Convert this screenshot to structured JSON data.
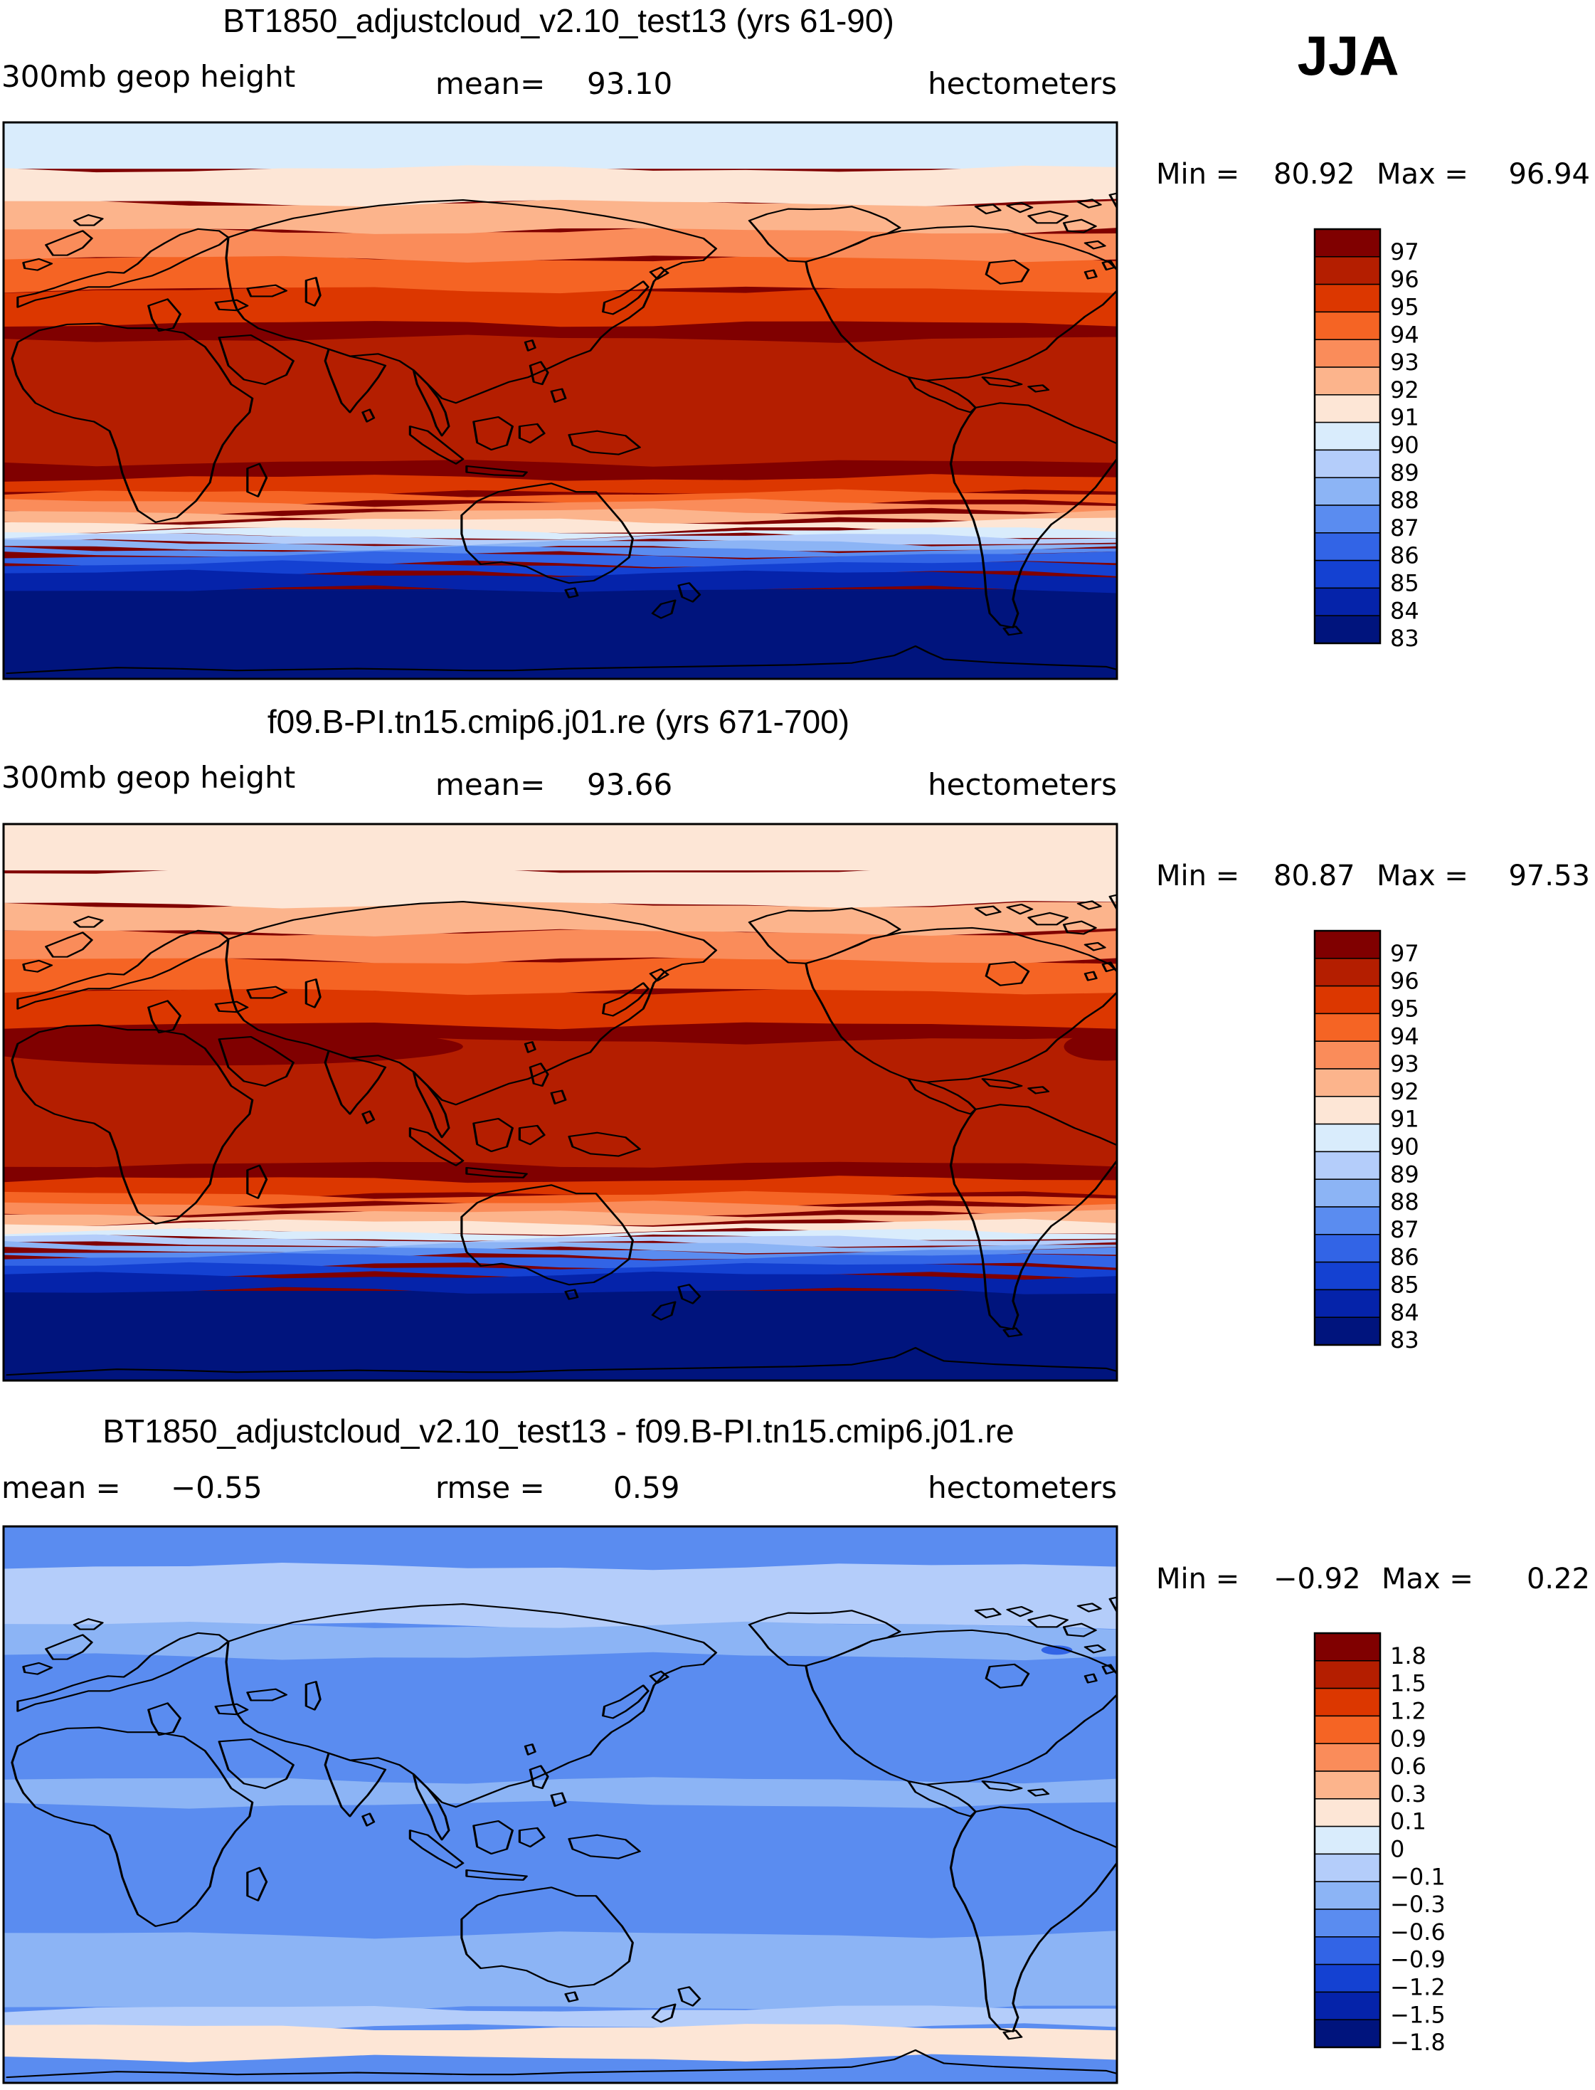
{
  "season": "JJA",
  "units_label": "hectometers",
  "panels": [
    {
      "id": "control",
      "title": "BT1850_adjustcloud_v2.10_test13 (yrs 61-90)",
      "variable": "300mb geop height",
      "mean_label": "mean=",
      "mean_value": "93.10",
      "min_label": "Min =",
      "min_value": "80.92",
      "max_label": "Max =",
      "max_value": "96.94",
      "pattern": "abs",
      "pole_color": "#d9ecfc",
      "warm_core": 0,
      "colorbar_labels": [
        "97",
        "96",
        "95",
        "94",
        "93",
        "92",
        "91",
        "90",
        "89",
        "88",
        "87",
        "86",
        "85",
        "84",
        "83"
      ]
    },
    {
      "id": "reference",
      "title": "f09.B-PI.tn15.cmip6.j01.re (yrs 671-700)",
      "variable": "300mb geop height",
      "mean_label": "mean=",
      "mean_value": "93.66",
      "min_label": "Min =",
      "min_value": "80.87",
      "max_label": "Max =",
      "max_value": "97.53",
      "pattern": "abs",
      "pole_color": "#fde6d6",
      "warm_core": 1,
      "colorbar_labels": [
        "97",
        "96",
        "95",
        "94",
        "93",
        "92",
        "91",
        "90",
        "89",
        "88",
        "87",
        "86",
        "85",
        "84",
        "83"
      ]
    },
    {
      "id": "difference",
      "title": "BT1850_adjustcloud_v2.10_test13 - f09.B-PI.tn15.cmip6.j01.re",
      "mean_label": "mean =",
      "mean_value": "−0.55",
      "rmse_label": "rmse =",
      "rmse_value": "0.59",
      "min_label": "Min =",
      "min_value": "−0.92",
      "max_label": "Max =",
      "max_value": "0.22",
      "pattern": "diff",
      "colorbar_labels": [
        "1.8",
        "1.5",
        "1.2",
        "0.9",
        "0.6",
        "0.3",
        "0.1",
        "0",
        "−0.1",
        "−0.3",
        "−0.6",
        "−0.9",
        "−1.2",
        "−1.5",
        "−1.8"
      ]
    }
  ],
  "colorbar_colors": [
    "#800000",
    "#b41e00",
    "#dc3700",
    "#f56424",
    "#fa8c5a",
    "#fcb48c",
    "#fde6d6",
    "#d9ecfc",
    "#b4cdfa",
    "#8cb4f5",
    "#5a8cf0",
    "#3264e6",
    "#1441d2",
    "#0523aa",
    "#00147d"
  ],
  "bands_abs": [
    {
      "color": "#b41e00",
      "min": -20,
      "max": 20
    },
    {
      "color": "#dc3700",
      "min": 25,
      "max": 36
    },
    {
      "color": "#f56424",
      "min": 36,
      "max": 46
    },
    {
      "color": "#fa8c5a",
      "min": 46,
      "max": 55
    },
    {
      "color": "#fcb48c",
      "min": 55,
      "max": 64
    },
    {
      "color": "#fde6d6",
      "min": 64,
      "max": 75
    },
    {
      "color": "#dc3700",
      "min": -30,
      "max": -25
    },
    {
      "color": "#f56424",
      "min": -33,
      "max": -30
    },
    {
      "color": "#fa8c5a",
      "min": -36,
      "max": -33
    },
    {
      "color": "#fcb48c",
      "min": -39,
      "max": -36
    },
    {
      "color": "#fde6d6",
      "min": -42,
      "max": -39
    },
    {
      "color": "#d9ecfc",
      "min": -44,
      "max": -42
    },
    {
      "color": "#b4cdfa",
      "min": -46,
      "max": -44
    },
    {
      "color": "#8cb4f5",
      "min": -48,
      "max": -46
    },
    {
      "color": "#5a8cf0",
      "min": -50,
      "max": -48
    },
    {
      "color": "#3264e6",
      "min": -53,
      "max": -50
    },
    {
      "color": "#1441d2",
      "min": -56,
      "max": -53
    },
    {
      "color": "#0523aa",
      "min": -61,
      "max": -56
    }
  ],
  "bands_diff": [
    {
      "color": "#b4cdfa",
      "min": 58,
      "max": 77
    },
    {
      "color": "#8cb4f5",
      "min": -60,
      "max": 58
    },
    {
      "color": "#5a8cf0",
      "min": 8,
      "max": 48
    },
    {
      "color": "#5a8cf0",
      "min": -42,
      "max": 0
    },
    {
      "color": "#8cb4f5",
      "min": -66,
      "max": -56
    },
    {
      "color": "#b4cdfa",
      "min": -72,
      "max": -66
    },
    {
      "color": "#fde6d6",
      "min": -82,
      "max": -72
    }
  ]
}
